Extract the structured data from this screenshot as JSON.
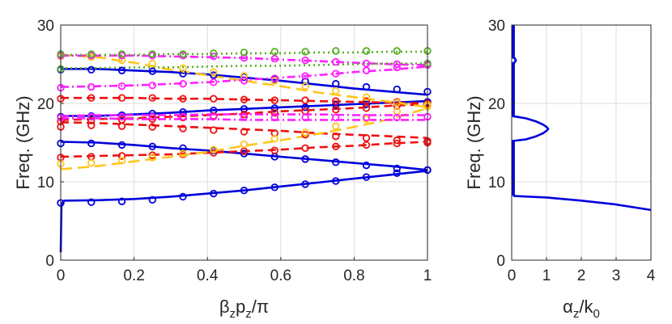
{
  "chart_data": [
    {
      "type": "line",
      "title": "",
      "xlabel": {
        "parts": [
          [
            "β",
            ""
          ],
          [
            "z",
            "sub"
          ],
          [
            "p",
            ""
          ],
          [
            "z",
            "sub"
          ],
          [
            "/π",
            ""
          ]
        ]
      },
      "ylabel": "Freq. (GHz)",
      "xlim": [
        0,
        1
      ],
      "ylim": [
        0,
        30
      ],
      "xticks": [
        0,
        0.2,
        0.4,
        0.6,
        0.8,
        1
      ],
      "xticklabels": [
        "0",
        "0.2",
        "0.4",
        "0.6",
        "0.8",
        "1"
      ],
      "yticks": [
        0,
        10,
        20,
        30
      ],
      "yticklabels": [
        "0",
        "10",
        "20",
        "30"
      ],
      "grid": true,
      "markers_x": [
        0,
        0.0833,
        0.1667,
        0.25,
        0.3333,
        0.4167,
        0.5,
        0.5833,
        0.6667,
        0.75,
        0.8333,
        0.9167,
        1
      ],
      "series": [
        {
          "name": "blue-1",
          "color": "#0000dd",
          "dash": "solid",
          "x": [
            0,
            0.002,
            0.01,
            0.1,
            0.2,
            0.3,
            0.4,
            0.5,
            0.6,
            0.7,
            0.8,
            0.9,
            1
          ],
          "y": [
            1,
            7.2,
            7.6,
            7.65,
            7.8,
            8.1,
            8.5,
            8.9,
            9.4,
            9.9,
            10.4,
            10.9,
            11.4
          ],
          "markers": [
            7.3,
            7.4,
            7.5,
            7.7,
            8.1,
            8.5,
            8.9,
            9.3,
            9.7,
            10.1,
            10.6,
            11.1,
            11.5
          ]
        },
        {
          "name": "blue-2",
          "color": "#0000dd",
          "dash": "solid",
          "x": [
            0,
            0.1,
            0.2,
            0.3,
            0.4,
            0.5,
            0.6,
            0.7,
            0.8,
            0.9,
            1
          ],
          "y": [
            15.1,
            15.0,
            14.7,
            14.3,
            14.0,
            13.6,
            13.2,
            12.8,
            12.4,
            12.0,
            11.5
          ],
          "markers": [
            14.9,
            14.9,
            14.7,
            14.5,
            14.3,
            14.0,
            13.6,
            13.2,
            12.9,
            12.5,
            12.1,
            11.7,
            11.5
          ]
        },
        {
          "name": "blue-3",
          "color": "#0000dd",
          "dash": "solid",
          "x": [
            0,
            0.1,
            0.2,
            0.3,
            0.4,
            0.5,
            0.6,
            0.7,
            0.8,
            0.9,
            1
          ],
          "y": [
            18.4,
            18.4,
            18.6,
            18.8,
            19.1,
            19.3,
            19.5,
            19.7,
            19.9,
            20.1,
            20.3
          ],
          "markers": [
            18.3,
            18.4,
            18.5,
            18.7,
            18.9,
            19.1,
            19.3,
            19.4,
            19.5,
            19.8,
            19.9,
            20.1,
            20.2
          ]
        },
        {
          "name": "blue-4",
          "color": "#0000dd",
          "dash": "solid",
          "x": [
            0,
            0.1,
            0.2,
            0.3,
            0.4,
            0.5,
            0.6,
            0.7,
            0.8,
            0.9,
            1
          ],
          "y": [
            24.4,
            24.4,
            24.2,
            24.0,
            23.7,
            23.3,
            22.9,
            22.4,
            21.9,
            21.5,
            21.1
          ],
          "markers": [
            24.3,
            24.3,
            24.2,
            24.1,
            23.8,
            23.6,
            23.4,
            23.1,
            22.8,
            22.5,
            22.1,
            21.8,
            21.5
          ]
        },
        {
          "name": "red-1",
          "color": "#ee1111",
          "dash": "10,6",
          "x": [
            0,
            0.1,
            0.2,
            0.3,
            0.4,
            0.5,
            0.6,
            0.7,
            0.8,
            0.9,
            1
          ],
          "y": [
            13.2,
            13.3,
            13.4,
            13.5,
            13.7,
            13.9,
            14.1,
            14.4,
            14.6,
            14.9,
            15.1
          ],
          "markers": [
            13.1,
            13.2,
            13.3,
            13.4,
            13.5,
            13.7,
            13.9,
            14.0,
            14.3,
            14.5,
            14.7,
            14.9,
            15.0
          ]
        },
        {
          "name": "red-2",
          "color": "#ee1111",
          "dash": "10,6",
          "x": [
            0,
            0.1,
            0.2,
            0.3,
            0.4,
            0.5,
            0.6,
            0.7,
            0.8,
            0.9,
            1
          ],
          "y": [
            17.6,
            17.5,
            17.3,
            17.1,
            16.9,
            16.7,
            16.5,
            16.2,
            16.0,
            15.8,
            15.6
          ],
          "markers": [
            17.0,
            17.2,
            17.1,
            17.0,
            16.8,
            16.6,
            16.4,
            16.2,
            16.0,
            15.8,
            15.6,
            15.3,
            15.2
          ]
        },
        {
          "name": "red-3",
          "color": "#ee1111",
          "dash": "10,6",
          "x": [
            0,
            0.1,
            0.2,
            0.3,
            0.4,
            0.5,
            0.6,
            0.7,
            0.8,
            0.9,
            1
          ],
          "y": [
            17.9,
            18.0,
            18.1,
            18.3,
            18.5,
            18.7,
            19.0,
            19.2,
            19.4,
            19.7,
            19.9
          ],
          "markers": [
            17.7,
            17.8,
            17.9,
            18.0,
            18.2,
            18.4,
            18.6,
            18.8,
            19.0,
            19.2,
            19.4,
            19.7,
            19.9
          ]
        },
        {
          "name": "red-4",
          "color": "#ee1111",
          "dash": "10,6",
          "x": [
            0,
            0.1,
            0.2,
            0.3,
            0.4,
            0.5,
            0.6,
            0.7,
            0.8,
            0.9,
            1
          ],
          "y": [
            20.7,
            20.7,
            20.7,
            20.6,
            20.6,
            20.5,
            20.4,
            20.3,
            20.2,
            20.1,
            20.0
          ],
          "markers": [
            20.6,
            20.7,
            20.7,
            20.7,
            20.6,
            20.6,
            20.5,
            20.4,
            20.4,
            20.3,
            20.3,
            20.2,
            20.0
          ]
        },
        {
          "name": "yellow-1",
          "color": "#ffc61e",
          "dash": "14,7",
          "x": [
            0,
            0.1,
            0.2,
            0.3,
            0.4,
            0.5,
            0.6,
            0.7,
            0.8,
            0.9,
            1
          ],
          "y": [
            11.6,
            12.0,
            12.6,
            13.2,
            13.8,
            14.6,
            15.3,
            16.1,
            17.0,
            18.0,
            19.4
          ],
          "markers": [
            12.3,
            12.4,
            12.7,
            13.1,
            13.6,
            14.1,
            14.8,
            15.5,
            16.3,
            17.1,
            18.0,
            19.0,
            19.8
          ]
        },
        {
          "name": "yellow-2",
          "color": "#ffc61e",
          "dash": "14,7",
          "x": [
            0,
            0.1,
            0.2,
            0.3,
            0.4,
            0.5,
            0.6,
            0.7,
            0.8,
            0.9,
            1
          ],
          "y": [
            26.2,
            25.9,
            25.2,
            24.3,
            23.6,
            22.9,
            22.2,
            21.4,
            20.8,
            20.2,
            19.5
          ],
          "markers": [
            26.0,
            25.9,
            25.5,
            25.1,
            24.5,
            24.0,
            23.5,
            22.9,
            22.2,
            21.6,
            20.8,
            20.1,
            19.6
          ]
        },
        {
          "name": "magenta-1",
          "color": "#ff1fff",
          "dash": "10,4,2,4",
          "x": [
            0,
            0.1,
            0.2,
            0.3,
            0.4,
            0.5,
            0.6,
            0.7,
            0.8,
            0.9,
            1
          ],
          "y": [
            18.1,
            18.1,
            18.0,
            18.0,
            18.0,
            17.9,
            17.9,
            17.9,
            17.9,
            17.9,
            17.9
          ],
          "markers": [
            18.2,
            18.3,
            18.3,
            18.3,
            18.3,
            18.3,
            18.3,
            18.2,
            18.2,
            18.2,
            18.2,
            18.2,
            18.3
          ]
        },
        {
          "name": "magenta-2",
          "color": "#ff1fff",
          "dash": "10,4,2,4",
          "x": [
            0,
            0.1,
            0.2,
            0.3,
            0.4,
            0.5,
            0.6,
            0.7,
            0.8,
            0.9,
            1
          ],
          "y": [
            18.4,
            18.5,
            18.5,
            18.5,
            18.6,
            18.6,
            18.6,
            18.6,
            18.5,
            18.5,
            18.5
          ]
        },
        {
          "name": "magenta-3",
          "color": "#ff1fff",
          "dash": "10,4,2,4",
          "x": [
            0,
            0.1,
            0.2,
            0.3,
            0.4,
            0.5,
            0.6,
            0.7,
            0.8,
            0.9,
            1
          ],
          "y": [
            22.1,
            22.2,
            22.3,
            22.5,
            22.7,
            23.0,
            23.3,
            23.6,
            24.0,
            24.3,
            24.7
          ],
          "markers": [
            22.0,
            22.1,
            22.2,
            22.3,
            22.5,
            22.7,
            22.9,
            23.2,
            23.5,
            23.8,
            24.2,
            24.6,
            25.0
          ]
        },
        {
          "name": "magenta-4",
          "color": "#ff1fff",
          "dash": "10,4,2,4",
          "x": [
            0,
            0.1,
            0.2,
            0.3,
            0.4,
            0.5,
            0.6,
            0.7,
            0.8,
            0.9,
            1
          ],
          "y": [
            26.1,
            26.1,
            26.1,
            26.0,
            25.9,
            25.8,
            25.6,
            25.4,
            25.2,
            25.0,
            24.9
          ],
          "markers": [
            26.1,
            26.1,
            26.1,
            26.1,
            26.1,
            26.0,
            25.8,
            25.7,
            25.5,
            25.3,
            25.1,
            25.0,
            24.9
          ]
        },
        {
          "name": "green-1",
          "color": "#55b022",
          "dash": "2,4",
          "x": [
            0,
            0.1,
            0.2,
            0.3,
            0.4,
            0.5,
            0.6,
            0.7,
            0.8,
            0.9,
            1
          ],
          "y": [
            24.5,
            24.5,
            24.6,
            24.6,
            24.7,
            24.8,
            24.8,
            24.9,
            25.0,
            25.1,
            25.1
          ],
          "markers": [
            24.4,
            null,
            null,
            null,
            null,
            null,
            null,
            null,
            null,
            null,
            null,
            null,
            25.1
          ]
        },
        {
          "name": "green-2",
          "color": "#55b022",
          "dash": "2,4",
          "x": [
            0,
            0.1,
            0.2,
            0.3,
            0.4,
            0.5,
            0.6,
            0.7,
            0.8,
            0.9,
            1
          ],
          "y": [
            26.2,
            26.2,
            26.2,
            26.3,
            26.3,
            26.4,
            26.4,
            26.5,
            26.5,
            26.6,
            26.6
          ],
          "markers": [
            26.3,
            26.3,
            26.3,
            26.3,
            26.3,
            26.4,
            26.5,
            26.6,
            26.6,
            26.7,
            26.7,
            26.7,
            26.7
          ]
        }
      ]
    },
    {
      "type": "line",
      "title": "",
      "xlabel": {
        "parts": [
          [
            "α",
            ""
          ],
          [
            "z",
            "sub"
          ],
          [
            "/k",
            ""
          ],
          [
            "0",
            "sub"
          ]
        ]
      },
      "ylabel": "Freq. (GHz)",
      "xlim": [
        0,
        4
      ],
      "ylim": [
        0,
        30
      ],
      "xticks": [
        0,
        1,
        2,
        3,
        4
      ],
      "xticklabels": [
        "0",
        "1",
        "2",
        "3",
        "4"
      ],
      "yticks": [
        0,
        10,
        20,
        30
      ],
      "yticklabels": [
        "0",
        "10",
        "20",
        "30"
      ],
      "grid": true,
      "series": [
        {
          "name": "attenuation-stopband-1",
          "color": "#0000dd",
          "dash": "solid",
          "x": [
            0.05,
            1.0,
            2.0,
            3.0,
            4.0
          ],
          "y": [
            8.2,
            8.0,
            7.6,
            7.1,
            6.4
          ]
        },
        {
          "name": "attenuation-stopband-2",
          "color": "#0000dd",
          "dash": "solid",
          "x": [
            0,
            0.4,
            0.7,
            0.9,
            1.0,
            1.05,
            1.0,
            0.9,
            0.7,
            0.4,
            0
          ],
          "y": [
            15.2,
            15.4,
            15.8,
            16.2,
            16.5,
            16.75,
            17.0,
            17.3,
            17.7,
            18.1,
            18.4
          ]
        },
        {
          "name": "attenuation-stopband-3",
          "color": "#0000dd",
          "dash": "solid",
          "x": [
            0,
            0.08,
            0.12,
            0.08,
            0
          ],
          "y": [
            25.1,
            25.2,
            25.5,
            25.8,
            25.9
          ]
        },
        {
          "name": "zero-attenuation",
          "color": "#0000dd",
          "dash": "solid",
          "width": 3.5,
          "x": [
            0.05,
            0.05
          ],
          "y": [
            8.2,
            15.2
          ],
          "segments": [
            [
              8.2,
              15.2
            ],
            [
              18.4,
              25.1
            ],
            [
              25.9,
              30
            ]
          ]
        }
      ]
    }
  ]
}
